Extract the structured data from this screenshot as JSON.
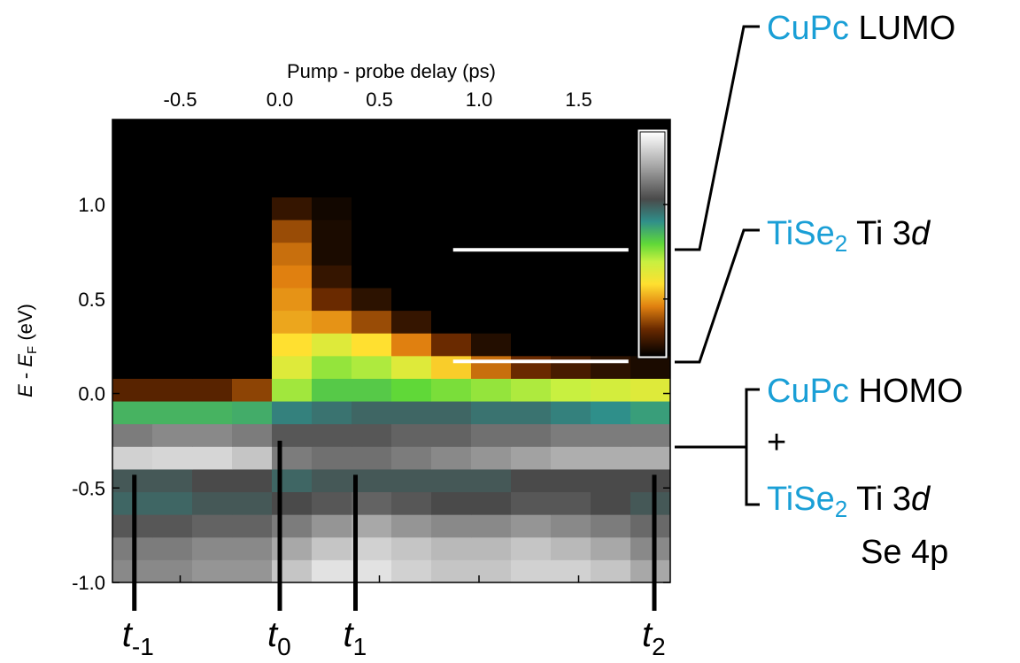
{
  "chart_data": {
    "type": "heatmap",
    "xlabel": "Pump - probe delay (ps)",
    "ylabel": [
      "E",
      " - ",
      "E",
      "F",
      " (eV)"
    ],
    "xlim": [
      -0.84,
      1.96
    ],
    "ylim": [
      -1.0,
      1.45
    ],
    "xticks": [
      -0.5,
      {
        "value": 0,
        "label": "0.0"
      },
      0.5,
      {
        "value": 1,
        "label": "1.0"
      },
      1.5
    ],
    "yticks": [
      {
        "value": -1,
        "label": "-1.0"
      },
      -0.5,
      {
        "value": 0,
        "label": "0.0"
      },
      0.5,
      {
        "value": 1,
        "label": "1.0"
      }
    ],
    "x_bins": [
      -0.84,
      -0.64,
      -0.44,
      -0.24,
      -0.04,
      0.16,
      0.36,
      0.56,
      0.76,
      0.96,
      1.16,
      1.36,
      1.56,
      1.76,
      1.96
    ],
    "y_bins": [
      -1.0,
      -0.88,
      -0.76,
      -0.64,
      -0.52,
      -0.4,
      -0.28,
      -0.16,
      -0.04,
      0.08,
      0.2,
      0.32,
      0.44,
      0.56,
      0.68,
      0.8,
      0.92,
      1.04,
      1.16,
      1.28,
      1.4
    ],
    "z": [
      [
        0.8,
        0.8,
        0.82,
        0.82,
        0.9,
        0.95,
        0.95,
        0.92,
        0.9,
        0.9,
        0.92,
        0.92,
        0.9,
        0.85
      ],
      [
        0.78,
        0.78,
        0.8,
        0.8,
        0.85,
        0.9,
        0.92,
        0.9,
        0.88,
        0.88,
        0.9,
        0.88,
        0.85,
        0.8
      ],
      [
        0.72,
        0.72,
        0.74,
        0.74,
        0.78,
        0.82,
        0.85,
        0.82,
        0.8,
        0.8,
        0.82,
        0.8,
        0.78,
        0.75
      ],
      [
        0.66,
        0.66,
        0.68,
        0.68,
        0.7,
        0.72,
        0.74,
        0.72,
        0.7,
        0.7,
        0.72,
        0.72,
        0.7,
        0.68
      ],
      [
        0.68,
        0.68,
        0.7,
        0.7,
        0.66,
        0.68,
        0.68,
        0.68,
        0.68,
        0.68,
        0.7,
        0.7,
        0.7,
        0.7
      ],
      [
        0.92,
        0.93,
        0.93,
        0.9,
        0.78,
        0.76,
        0.76,
        0.78,
        0.8,
        0.82,
        0.84,
        0.86,
        0.86,
        0.86
      ],
      [
        0.78,
        0.8,
        0.8,
        0.78,
        0.72,
        0.72,
        0.72,
        0.74,
        0.74,
        0.76,
        0.76,
        0.78,
        0.78,
        0.78
      ],
      [
        0.55,
        0.55,
        0.55,
        0.56,
        0.62,
        0.64,
        0.66,
        0.66,
        0.66,
        0.64,
        0.64,
        0.62,
        0.6,
        0.58
      ],
      [
        0.1,
        0.1,
        0.1,
        0.15,
        0.45,
        0.52,
        0.52,
        0.5,
        0.48,
        0.46,
        0.44,
        0.42,
        0.4,
        0.38
      ],
      [
        0,
        0,
        0,
        0,
        0.38,
        0.46,
        0.44,
        0.38,
        0.3,
        0.2,
        0.12,
        0.08,
        0.05,
        0.03
      ],
      [
        0,
        0,
        0,
        0,
        0.32,
        0.38,
        0.32,
        0.22,
        0.12,
        0.04,
        0,
        0,
        0,
        0
      ],
      [
        0,
        0,
        0,
        0,
        0.26,
        0.24,
        0.16,
        0.06,
        0,
        0,
        0,
        0,
        0,
        0
      ],
      [
        0,
        0,
        0,
        0,
        0.24,
        0.12,
        0.05,
        0,
        0,
        0,
        0,
        0,
        0,
        0
      ],
      [
        0,
        0,
        0,
        0,
        0.22,
        0.06,
        0,
        0,
        0,
        0,
        0,
        0,
        0,
        0
      ],
      [
        0,
        0,
        0,
        0,
        0.2,
        0.03,
        0,
        0,
        0,
        0,
        0,
        0,
        0,
        0
      ],
      [
        0,
        0,
        0,
        0,
        0.16,
        0.03,
        0,
        0,
        0,
        0,
        0,
        0,
        0,
        0
      ],
      [
        0,
        0,
        0,
        0,
        0.06,
        0.02,
        0,
        0,
        0,
        0,
        0,
        0,
        0,
        0
      ],
      [
        0,
        0,
        0,
        0,
        0,
        0,
        0,
        0,
        0,
        0,
        0,
        0,
        0,
        0
      ],
      [
        0,
        0,
        0,
        0,
        0,
        0,
        0,
        0,
        0,
        0,
        0,
        0,
        0,
        0
      ],
      [
        0,
        0,
        0,
        0,
        0,
        0,
        0,
        0,
        0,
        0,
        0,
        0,
        0,
        0
      ]
    ],
    "colorscale": [
      [
        0,
        "#000000"
      ],
      [
        0.12,
        "#6a2a00"
      ],
      [
        0.22,
        "#e08010"
      ],
      [
        0.32,
        "#ffe030"
      ],
      [
        0.42,
        "#c8f040"
      ],
      [
        0.5,
        "#60d838"
      ],
      [
        0.6,
        "#2f8f8a"
      ],
      [
        0.7,
        "#4a4a4a"
      ],
      [
        0.85,
        "#a8a8a8"
      ],
      [
        1,
        "#ffffff"
      ]
    ],
    "levels": [
      {
        "y": 0.76,
        "x": [
          0.87,
          1.75
        ]
      },
      {
        "y": 0.17,
        "x": [
          0.87,
          1.75
        ]
      }
    ],
    "markers": [
      {
        "x": -0.73,
        "y": -0.43,
        "label": "t",
        "sub": "-1"
      },
      {
        "x": 0.0,
        "y": -0.25,
        "label": "t",
        "sub": "0"
      },
      {
        "x": 0.38,
        "y": -0.43,
        "label": "t",
        "sub": "1"
      },
      {
        "x": 1.88,
        "y": -0.43,
        "label": "t",
        "sub": "2"
      }
    ],
    "annotations": {
      "lumo": [
        "CuPc",
        " LUMO"
      ],
      "ti3d": [
        "TiSe",
        "2",
        " Ti 3",
        "d"
      ],
      "homo": [
        "CuPc",
        " HOMO"
      ],
      "plus": "+",
      "ti3d_b": [
        "TiSe",
        "2",
        " Ti 3",
        "d"
      ],
      "se4p": "Se 4p"
    }
  }
}
